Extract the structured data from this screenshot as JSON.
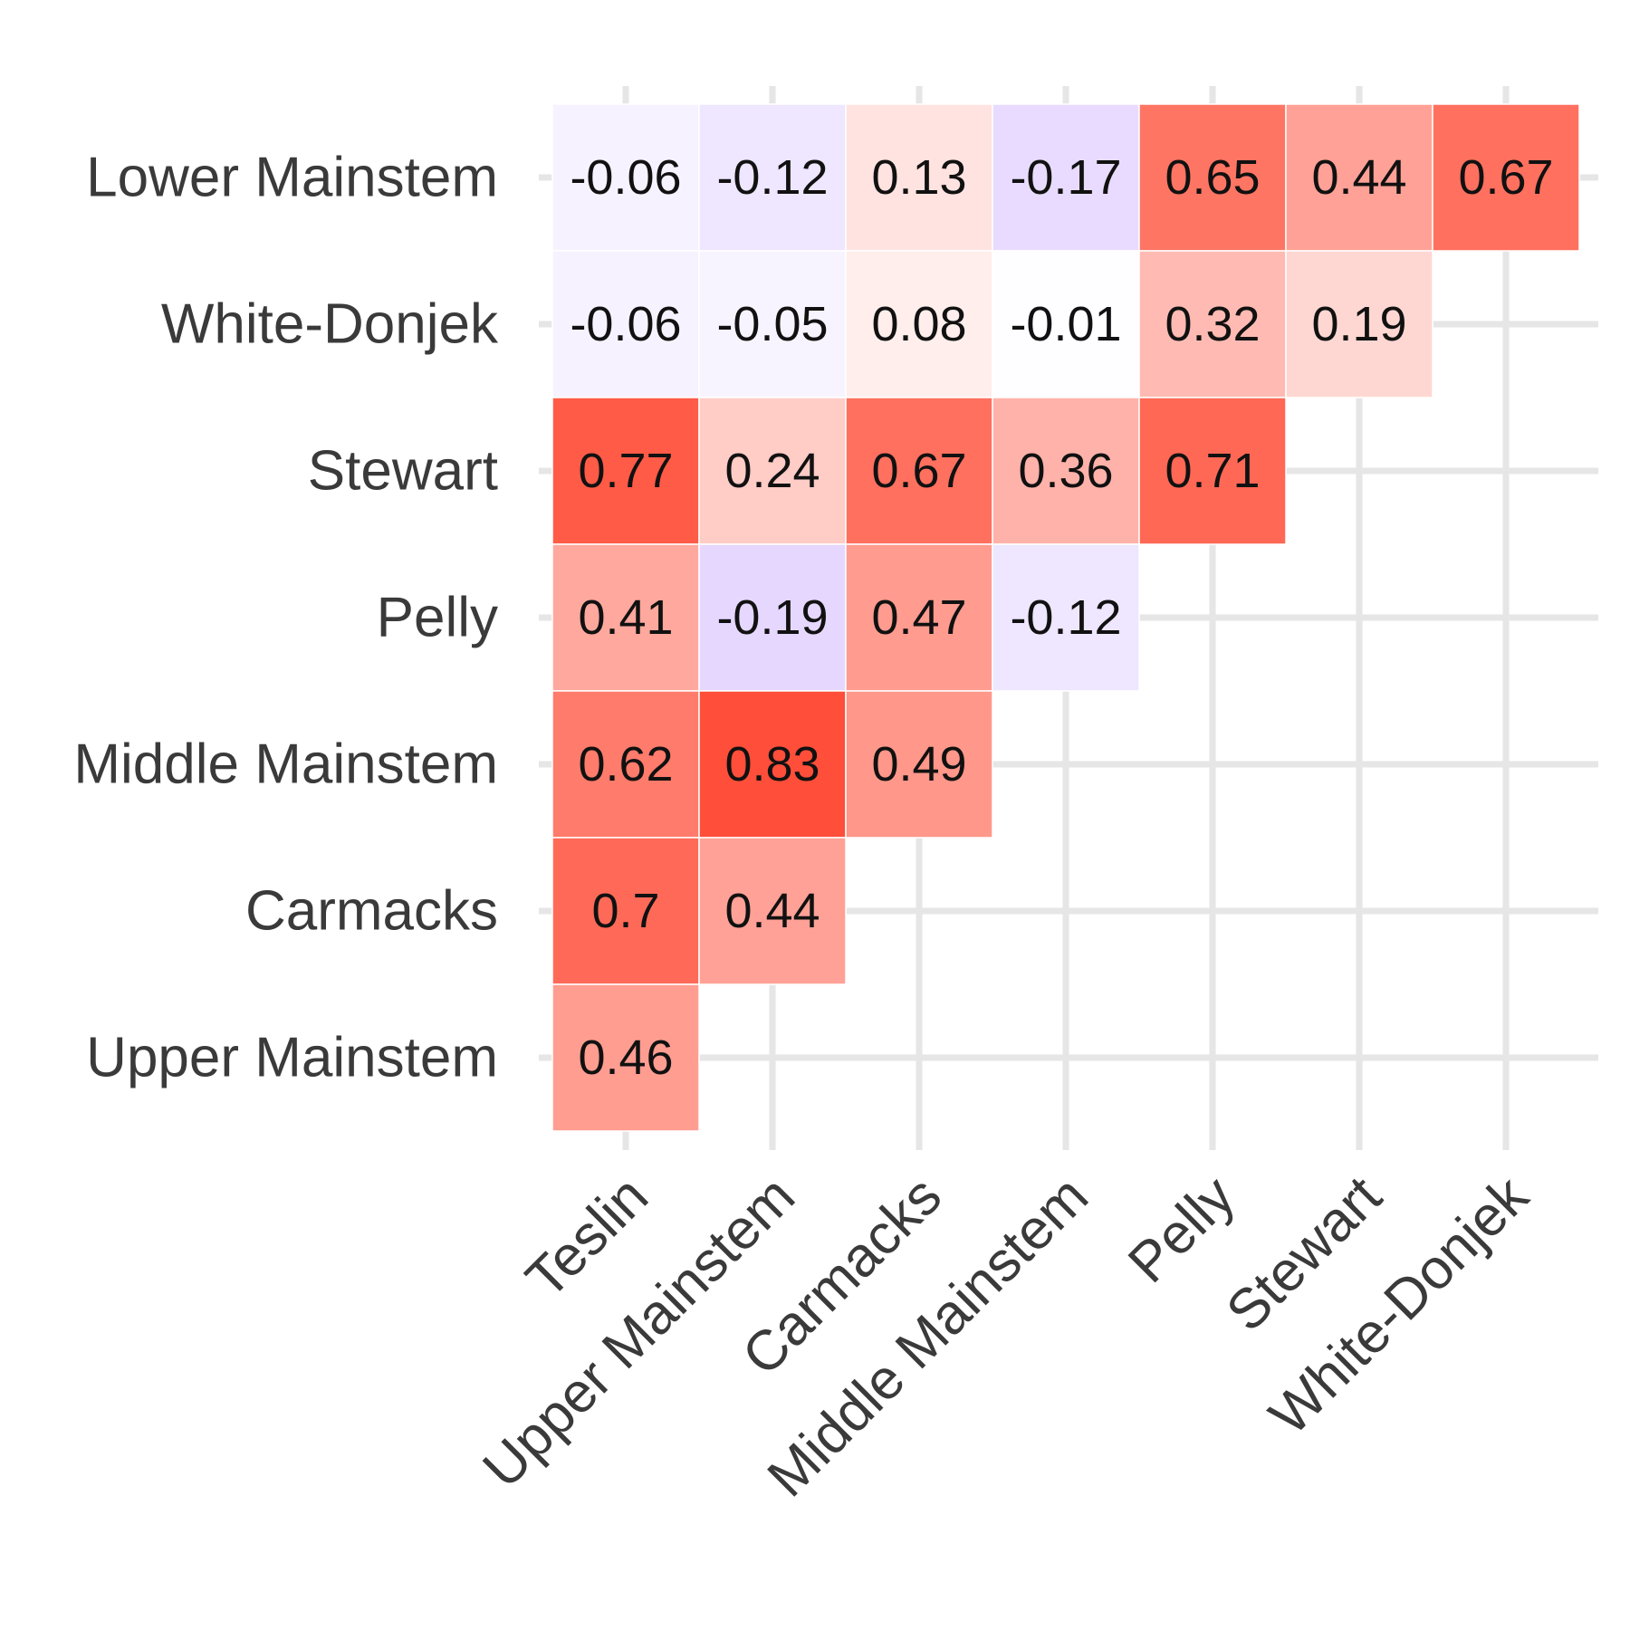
{
  "chart_data": {
    "type": "heatmap",
    "title": "",
    "xlabel": "",
    "ylabel": "",
    "x_categories": [
      "Teslin",
      "Upper Mainstem",
      "Carmacks",
      "Middle Mainstem",
      "Pelly",
      "Stewart",
      "White-Donjek"
    ],
    "y_categories": [
      "Lower Mainstem",
      "White-Donjek",
      "Stewart",
      "Pelly",
      "Middle Mainstem",
      "Carmacks",
      "Upper Mainstem"
    ],
    "cells": [
      {
        "row": "Lower Mainstem",
        "col": "Teslin",
        "value": -0.06
      },
      {
        "row": "Lower Mainstem",
        "col": "Upper Mainstem",
        "value": -0.12
      },
      {
        "row": "Lower Mainstem",
        "col": "Carmacks",
        "value": 0.13
      },
      {
        "row": "Lower Mainstem",
        "col": "Middle Mainstem",
        "value": -0.17
      },
      {
        "row": "Lower Mainstem",
        "col": "Pelly",
        "value": 0.65
      },
      {
        "row": "Lower Mainstem",
        "col": "Stewart",
        "value": 0.44
      },
      {
        "row": "Lower Mainstem",
        "col": "White-Donjek",
        "value": 0.67
      },
      {
        "row": "White-Donjek",
        "col": "Teslin",
        "value": -0.06
      },
      {
        "row": "White-Donjek",
        "col": "Upper Mainstem",
        "value": -0.05
      },
      {
        "row": "White-Donjek",
        "col": "Carmacks",
        "value": 0.08
      },
      {
        "row": "White-Donjek",
        "col": "Middle Mainstem",
        "value": -0.01
      },
      {
        "row": "White-Donjek",
        "col": "Pelly",
        "value": 0.32
      },
      {
        "row": "White-Donjek",
        "col": "Stewart",
        "value": 0.19
      },
      {
        "row": "Stewart",
        "col": "Teslin",
        "value": 0.77
      },
      {
        "row": "Stewart",
        "col": "Upper Mainstem",
        "value": 0.24
      },
      {
        "row": "Stewart",
        "col": "Carmacks",
        "value": 0.67
      },
      {
        "row": "Stewart",
        "col": "Middle Mainstem",
        "value": 0.36
      },
      {
        "row": "Stewart",
        "col": "Pelly",
        "value": 0.71
      },
      {
        "row": "Pelly",
        "col": "Teslin",
        "value": 0.41
      },
      {
        "row": "Pelly",
        "col": "Upper Mainstem",
        "value": -0.19
      },
      {
        "row": "Pelly",
        "col": "Carmacks",
        "value": 0.47
      },
      {
        "row": "Pelly",
        "col": "Middle Mainstem",
        "value": -0.12
      },
      {
        "row": "Middle Mainstem",
        "col": "Teslin",
        "value": 0.62
      },
      {
        "row": "Middle Mainstem",
        "col": "Upper Mainstem",
        "value": 0.83
      },
      {
        "row": "Middle Mainstem",
        "col": "Carmacks",
        "value": 0.49
      },
      {
        "row": "Carmacks",
        "col": "Teslin",
        "value": 0.7
      },
      {
        "row": "Carmacks",
        "col": "Upper Mainstem",
        "value": 0.44
      },
      {
        "row": "Upper Mainstem",
        "col": "Teslin",
        "value": 0.46
      }
    ],
    "color_scale": {
      "negative": "#7b2cff",
      "zero": "#ffffff",
      "positive": "#ff2a10"
    },
    "grid": true,
    "legend": "none"
  }
}
